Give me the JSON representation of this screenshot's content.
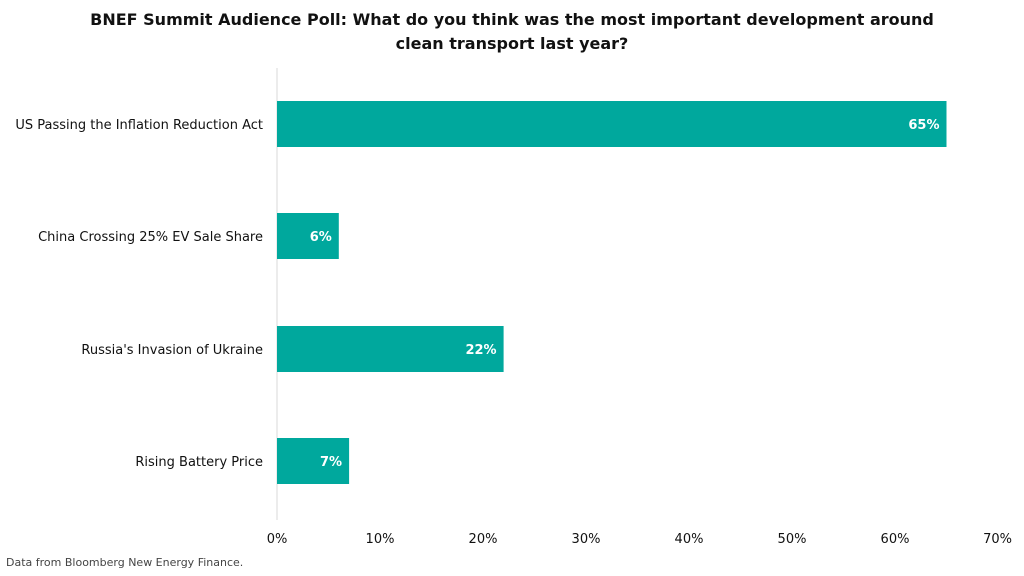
{
  "chart_data": {
    "type": "bar",
    "orientation": "horizontal",
    "title_lines": [
      "BNEF Summit Audience Poll: What do you think was the most important development around",
      "clean transport last year?"
    ],
    "categories": [
      "US Passing the Inflation Reduction Act",
      "China Crossing 25% EV Sale Share",
      "Russia's Invasion of Ukraine",
      "Rising Battery Price"
    ],
    "values": [
      65,
      6,
      22,
      7
    ],
    "data_labels": [
      "65%",
      "6%",
      "22%",
      "7%"
    ],
    "xlim": [
      0,
      70
    ],
    "x_ticks": [
      0,
      10,
      20,
      30,
      40,
      50,
      60,
      70
    ],
    "x_tick_labels": [
      "0%",
      "10%",
      "20%",
      "30%",
      "40%",
      "50%",
      "60%",
      "70%"
    ],
    "grid": false,
    "legend": "none",
    "bar_color": "#00a89d"
  },
  "footnote": "Data from Bloomberg New Energy Finance."
}
